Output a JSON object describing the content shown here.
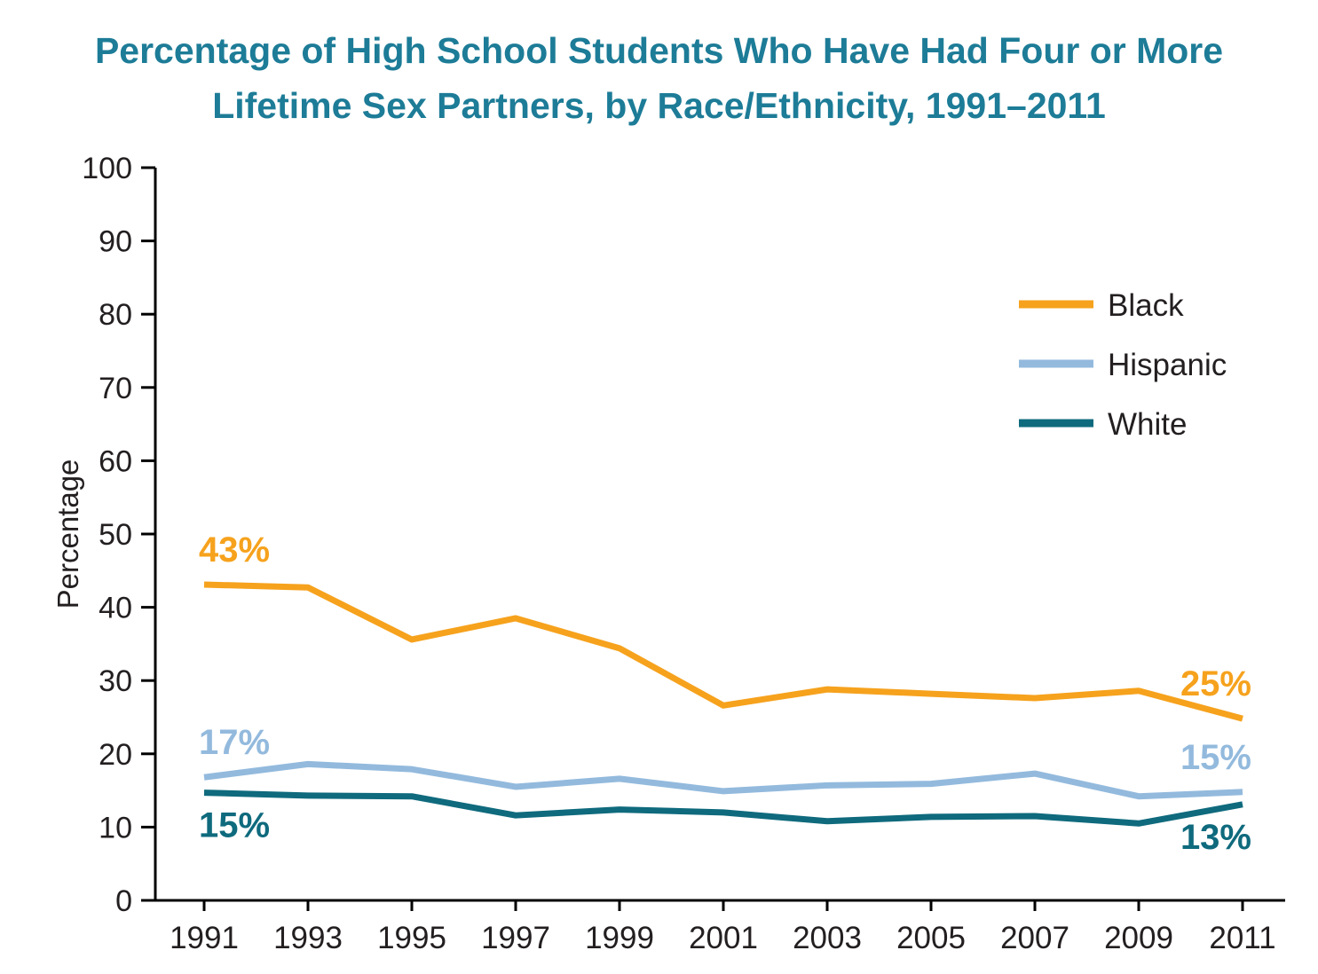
{
  "title": {
    "line1": "Percentage of High School Students Who Have Had Four or More",
    "line2": "Lifetime Sex Partners, by Race/Ethnicity, 1991–2011"
  },
  "colors": {
    "title": "#1d7c97",
    "axis": "#000000",
    "tick_text": "#231f20",
    "legend_text": "#231f20",
    "black_series": "#f6a21d",
    "hispanic_series": "#93badd",
    "white_series": "#0f6a7d"
  },
  "chart_data": {
    "type": "line",
    "title": "Percentage of High School Students Who Have Had Four or More Lifetime Sex Partners, by Race/Ethnicity, 1991–2011",
    "xlabel": "",
    "ylabel": "Percentage",
    "ylim": [
      0,
      100
    ],
    "y_ticks": [
      0,
      10,
      20,
      30,
      40,
      50,
      60,
      70,
      80,
      90,
      100
    ],
    "grid": false,
    "legend_position": "top-right",
    "categories": [
      "1991",
      "1993",
      "1995",
      "1997",
      "1999",
      "2001",
      "2003",
      "2005",
      "2007",
      "2009",
      "2011"
    ],
    "series": [
      {
        "name": "Black",
        "color": "#f6a21d",
        "values": [
          43.1,
          42.7,
          35.6,
          38.5,
          34.4,
          26.6,
          28.8,
          28.2,
          27.6,
          28.6,
          24.8
        ]
      },
      {
        "name": "Hispanic",
        "color": "#93badd",
        "values": [
          16.8,
          18.6,
          17.9,
          15.5,
          16.6,
          14.9,
          15.7,
          15.9,
          17.3,
          14.2,
          14.8
        ]
      },
      {
        "name": "White",
        "color": "#0f6a7d",
        "values": [
          14.7,
          14.3,
          14.2,
          11.6,
          12.4,
          12.0,
          10.8,
          11.4,
          11.5,
          10.5,
          13.1
        ]
      }
    ],
    "annotations": [
      {
        "text": "43%",
        "series": "Black",
        "at": "start",
        "side": "above",
        "color": "#f6a21d"
      },
      {
        "text": "25%",
        "series": "Black",
        "at": "end",
        "side": "above",
        "color": "#f6a21d"
      },
      {
        "text": "17%",
        "series": "Hispanic",
        "at": "start",
        "side": "above",
        "color": "#93badd"
      },
      {
        "text": "15%",
        "series": "Hispanic",
        "at": "end",
        "side": "above",
        "color": "#93badd"
      },
      {
        "text": "15%",
        "series": "White",
        "at": "start",
        "side": "below",
        "color": "#0f6a7d"
      },
      {
        "text": "13%",
        "series": "White",
        "at": "end",
        "side": "below",
        "color": "#0f6a7d"
      }
    ]
  }
}
